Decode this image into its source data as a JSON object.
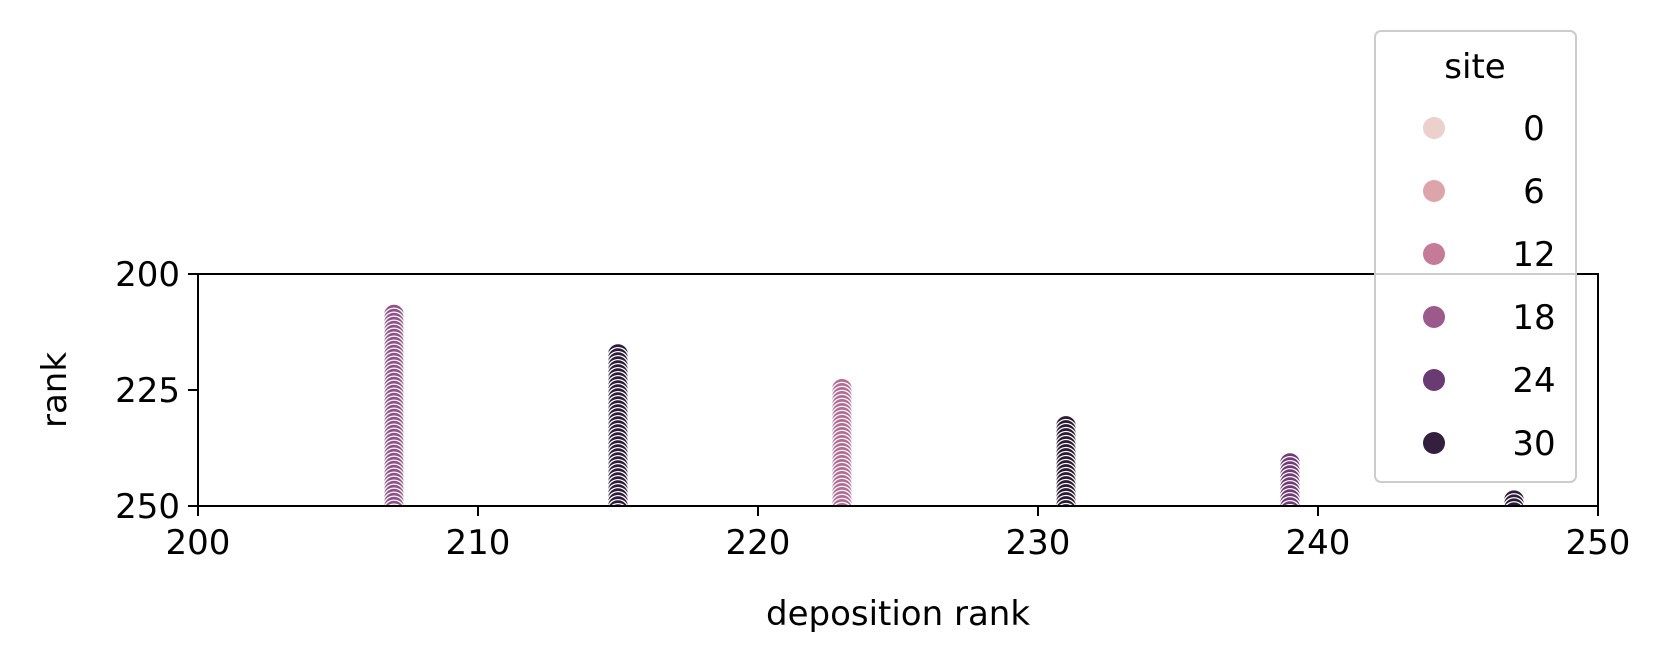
{
  "chart_data": {
    "type": "scatter",
    "title": "",
    "xlabel": "deposition rank",
    "ylabel": "rank",
    "xlim": [
      200,
      250
    ],
    "ylim": [
      250,
      200
    ],
    "y_inverted": true,
    "xticks": [
      "200",
      "210",
      "220",
      "230",
      "240",
      "250"
    ],
    "yticks": [
      "200",
      "225",
      "250"
    ],
    "grid": false,
    "legend": {
      "title": "site",
      "placement": "top-right",
      "entries": [
        {
          "label": "0",
          "color": "#ebd0cb"
        },
        {
          "label": "6",
          "color": "#dca5ab"
        },
        {
          "label": "12",
          "color": "#c57a98"
        },
        {
          "label": "18",
          "color": "#9c5a8c"
        },
        {
          "label": "24",
          "color": "#6a3a72"
        },
        {
          "label": "30",
          "color": "#33203e"
        }
      ]
    },
    "columns": [
      {
        "x": 207,
        "y_top": 206.5,
        "y_bottom": 250,
        "site": 18,
        "color": "#8e5288"
      },
      {
        "x": 215,
        "y_top": 215,
        "y_bottom": 250,
        "site": 30,
        "color": "#2e1c38"
      },
      {
        "x": 223,
        "y_top": 222.5,
        "y_bottom": 250,
        "site": 14,
        "color": "#b06d95"
      },
      {
        "x": 231,
        "y_top": 230.5,
        "y_bottom": 250,
        "site": 31,
        "color": "#2a1a33"
      },
      {
        "x": 239,
        "y_top": 238.5,
        "y_bottom": 250,
        "site": 22,
        "color": "#6e3d74"
      },
      {
        "x": 247,
        "y_top": 246.5,
        "y_bottom": 250,
        "site": 30,
        "color": "#2e1c38"
      }
    ]
  }
}
